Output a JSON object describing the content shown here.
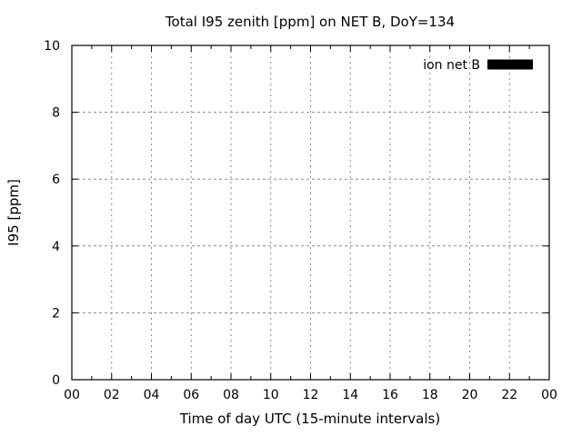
{
  "colors": {
    "background": "#ffffff",
    "axis": "#000000",
    "text": "#000000",
    "grid": "#8a8a8a",
    "legend_swatch": "#000000"
  },
  "chart_data": {
    "type": "line",
    "title": "Total I95 zenith [ppm] on NET B, DoY=134",
    "xlabel": "Time of day UTC (15-minute intervals)",
    "ylabel": "I95 [ppm]",
    "x_axis": {
      "unit": "hours",
      "min": 0,
      "max": 24,
      "major_tick_step_hours": 2,
      "minor_tick_step_hours": 1
    },
    "xtick_labels": [
      "00",
      "02",
      "04",
      "06",
      "08",
      "10",
      "12",
      "14",
      "16",
      "18",
      "20",
      "22",
      "00"
    ],
    "ylim": [
      0,
      10
    ],
    "ytick_values": [
      0,
      2,
      4,
      6,
      8,
      10
    ],
    "ytick_labels": [
      "0",
      "2",
      "4",
      "6",
      "8",
      "10"
    ],
    "grid": {
      "visible": true,
      "style": "dashed",
      "on_major_ticks": true
    },
    "legend": {
      "position": "top-right-inside",
      "entries": [
        {
          "label": "ion net B",
          "swatch": "filled-black-box"
        }
      ]
    },
    "series": [
      {
        "name": "ion net B",
        "values": []
      }
    ]
  }
}
